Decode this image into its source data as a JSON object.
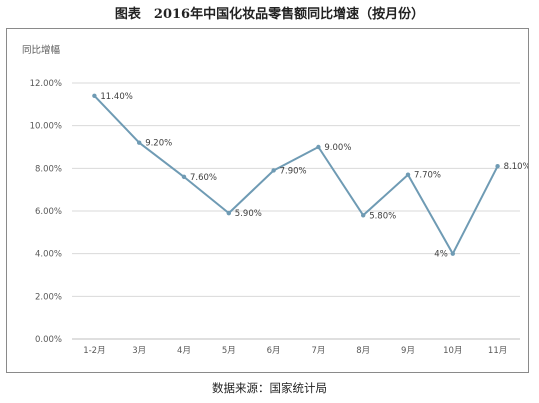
{
  "header": {
    "title": "图表　2016年中国化妆品零售额同比增速（按月份）"
  },
  "footer": {
    "source": "数据来源：国家统计局"
  },
  "chart_data": {
    "type": "line",
    "title": "图表　2016年中国化妆品零售额同比增速（按月份）",
    "xlabel": "",
    "ylabel": "同比增幅",
    "categories": [
      "1-2月",
      "3月",
      "4月",
      "5月",
      "6月",
      "7月",
      "8月",
      "9月",
      "10月",
      "11月"
    ],
    "series": [
      {
        "values": [
          11.4,
          9.2,
          7.6,
          5.9,
          7.9,
          9.0,
          5.8,
          7.7,
          4.0,
          8.1
        ],
        "data_labels": [
          "11.40%",
          "9.20%",
          "7.60%",
          "5.90%",
          "7.90%",
          "9.00%",
          "5.80%",
          "7.70%",
          "4%",
          "8.10%"
        ],
        "color": "#6f9bb4"
      }
    ],
    "yticks": [
      0,
      2,
      4,
      6,
      8,
      10,
      12
    ],
    "ytick_labels": [
      "0.00%",
      "2.00%",
      "4.00%",
      "6.00%",
      "8.00%",
      "10.00%",
      "12.00%"
    ],
    "ylim": [
      0,
      12
    ],
    "grid": true,
    "gridline_color": "#d9d9d9",
    "axis_color": "#bfbfbf",
    "legend": "none"
  }
}
